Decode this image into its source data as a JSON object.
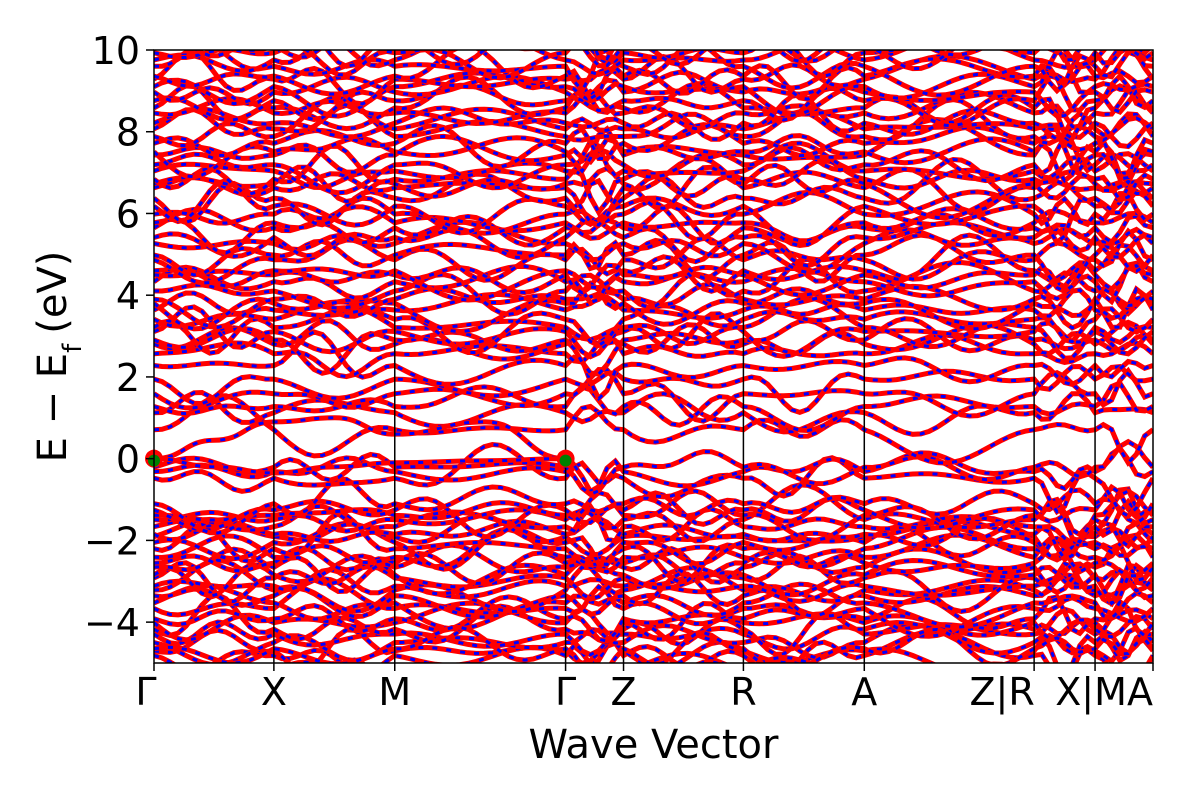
{
  "chart_data": {
    "type": "line",
    "xlabel": "Wave Vector",
    "ylabel_main": "E − E",
    "ylabel_sub": "f",
    "ylabel_unit": "(eV)",
    "ylim": [
      -5,
      10
    ],
    "xlim": [
      0,
      1
    ],
    "yticks": [
      {
        "value": 10,
        "label": "10"
      },
      {
        "value": 8,
        "label": "8"
      },
      {
        "value": 6,
        "label": "6"
      },
      {
        "value": 4,
        "label": "4"
      },
      {
        "value": 2,
        "label": "2"
      },
      {
        "value": 0,
        "label": "0"
      },
      {
        "value": -2,
        "label": "−2"
      },
      {
        "value": -4,
        "label": "−4"
      }
    ],
    "kpoints": [
      {
        "x": 0.0,
        "label": "Γ"
      },
      {
        "x": 0.2,
        "label": "X"
      },
      {
        "x": 0.4,
        "label": "M"
      },
      {
        "x": 0.683,
        "label": "Γ"
      },
      {
        "x": 0.783,
        "label": "Z"
      },
      {
        "x": 0.983,
        "label": "R"
      },
      {
        "x": 1.183,
        "label": "A"
      },
      {
        "x": 1.667,
        "label": "Z|R"
      },
      {
        "x": 1.767,
        "label": "X|M"
      },
      {
        "x": 1.667,
        "label": "A"
      }
    ],
    "kpath": {
      "segments": [
        "Γ-X",
        "X-M",
        "M-Γ",
        "Γ-Z",
        "Z-R",
        "R-A",
        "A-Z",
        "R-X",
        "M-A"
      ]
    },
    "colors": {
      "band_primary": "#ff0000",
      "band_secondary": "#0000ff",
      "marker": "#008000",
      "marker_halo": "#ff0000"
    },
    "markers": [
      {
        "x": 0.0,
        "y": 0.0
      },
      {
        "x": 0.683,
        "y": 0.0
      }
    ],
    "bands_near_fermi": [
      {
        "name": "",
        "points": [
          [
            0,
            0.0
          ],
          [
            0.1,
            0.45
          ],
          [
            0.2,
            0.9
          ],
          [
            0.3,
            1.0
          ],
          [
            0.4,
            0.6
          ],
          [
            0.55,
            0.9
          ],
          [
            0.683,
            0.0
          ]
        ]
      },
      {
        "name": "",
        "points": [
          [
            0,
            0.0
          ],
          [
            0.1,
            -0.2
          ],
          [
            0.2,
            -0.35
          ],
          [
            0.3,
            -0.2
          ],
          [
            0.4,
            -0.1
          ],
          [
            0.55,
            -0.05
          ],
          [
            0.683,
            0.0
          ]
        ]
      }
    ]
  }
}
